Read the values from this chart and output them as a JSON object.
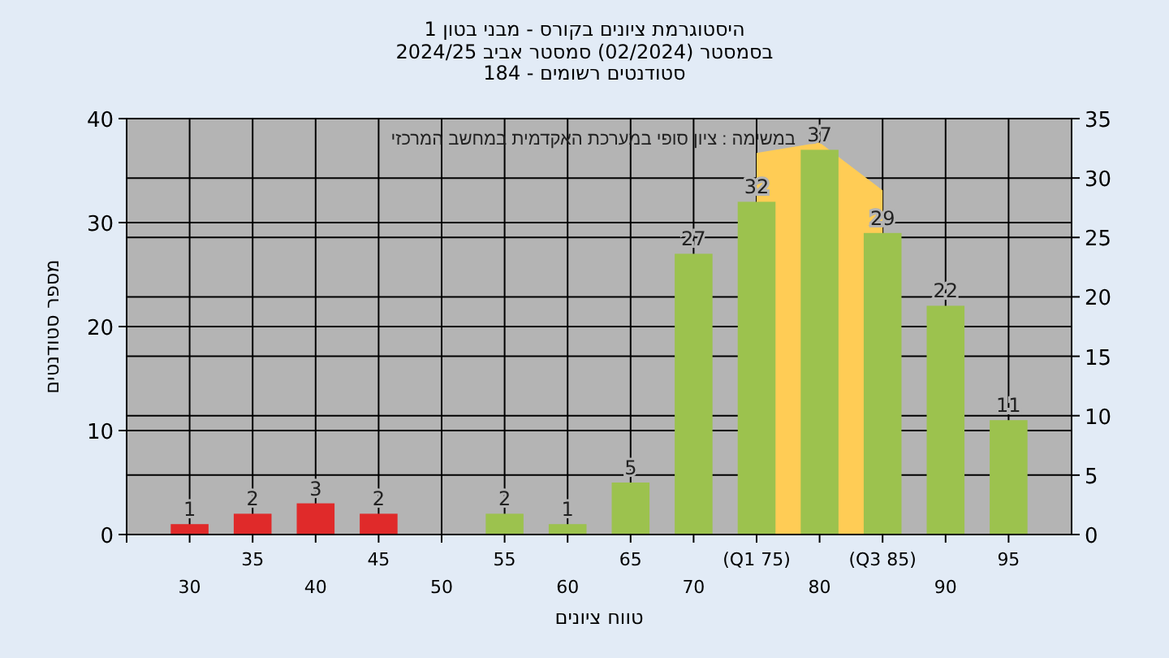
{
  "chart_data": {
    "type": "bar",
    "title": "היסטוגרמת ציונים בקורס - מבני בטון 1",
    "subtitle": "בסמסטר  (02/2024)  סמסטר אביב 2024/25\nסטודנטים רשומים - 184",
    "xlabel": "טווח ציונים",
    "ylabel": "מספר סטודנטים",
    "annotations": [
      "במשימה : ציון סופי במערכת האקדמית במחשב המרכזי"
    ],
    "categories": [
      "30",
      "35",
      "40",
      "45",
      "50",
      "55",
      "60",
      "65",
      "70",
      "(Q1 75)",
      "80",
      "(Q3 85)",
      "90",
      "95"
    ],
    "series": [
      {
        "type": "area",
        "color": "#ffcc55",
        "values": [
          null,
          null,
          null,
          null,
          null,
          null,
          null,
          null,
          null,
          36.7,
          37.7,
          33.1,
          null,
          null
        ]
      },
      {
        "color": "#e02a2a",
        "values": [
          1,
          2,
          3,
          2,
          null,
          null,
          null,
          null,
          null,
          null,
          null,
          null,
          null,
          null
        ],
        "value_labels": [
          "1",
          "2",
          "3",
          "2",
          null,
          null,
          null,
          null,
          null,
          null,
          null,
          null,
          null,
          null
        ]
      },
      {
        "color": "#9cc24e",
        "values": [
          null,
          null,
          null,
          null,
          null,
          2,
          1,
          5,
          27,
          32,
          37,
          29,
          22,
          11
        ],
        "value_labels": [
          null,
          null,
          null,
          null,
          null,
          "2",
          "1",
          "5",
          "27",
          "32",
          "37",
          "29",
          "22",
          "11"
        ]
      }
    ],
    "ylim": [
      0,
      40
    ],
    "yticks": [
      0,
      10,
      20,
      30,
      40
    ],
    "y2lim": [
      0,
      35
    ],
    "y2ticks": [
      0,
      5,
      10,
      15,
      20,
      25,
      30,
      35
    ],
    "grid": true
  }
}
